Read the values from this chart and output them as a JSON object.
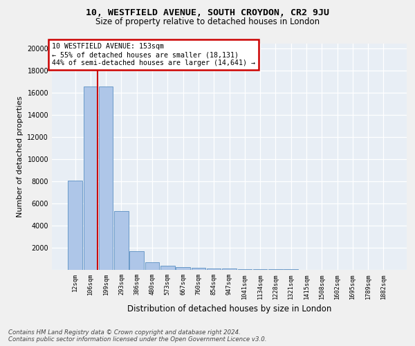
{
  "title1": "10, WESTFIELD AVENUE, SOUTH CROYDON, CR2 9JU",
  "title2": "Size of property relative to detached houses in London",
  "xlabel": "Distribution of detached houses by size in London",
  "ylabel": "Number of detached properties",
  "bar_labels": [
    "12sqm",
    "106sqm",
    "199sqm",
    "293sqm",
    "386sqm",
    "480sqm",
    "573sqm",
    "667sqm",
    "760sqm",
    "854sqm",
    "947sqm",
    "1041sqm",
    "1134sqm",
    "1228sqm",
    "1321sqm",
    "1415sqm",
    "1508sqm",
    "1602sqm",
    "1695sqm",
    "1789sqm",
    "1882sqm"
  ],
  "bar_heights": [
    8050,
    16600,
    16600,
    5300,
    1720,
    700,
    350,
    250,
    200,
    130,
    100,
    80,
    65,
    50,
    40,
    30,
    25,
    20,
    15,
    10,
    8
  ],
  "bar_color": "#aec6e8",
  "bar_edge_color": "#5a8fc2",
  "vline_x": 1.44,
  "vline_color": "#cc0000",
  "annotation_text": "10 WESTFIELD AVENUE: 153sqm\n← 55% of detached houses are smaller (18,131)\n44% of semi-detached houses are larger (14,641) →",
  "annotation_box_color": "#cc0000",
  "ylim": [
    0,
    20500
  ],
  "yticks": [
    0,
    2000,
    4000,
    6000,
    8000,
    10000,
    12000,
    14000,
    16000,
    18000,
    20000
  ],
  "footnote": "Contains HM Land Registry data © Crown copyright and database right 2024.\nContains public sector information licensed under the Open Government Licence v3.0.",
  "bg_color": "#f0f0f0",
  "plot_bg_color": "#e8eef5"
}
